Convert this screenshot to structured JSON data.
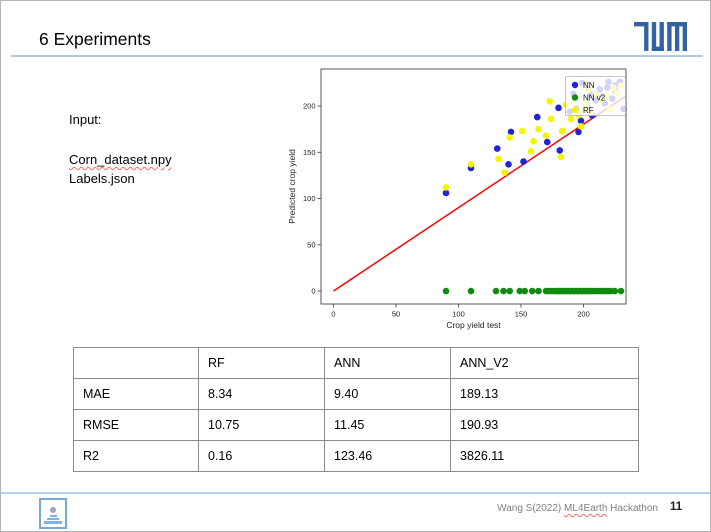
{
  "header": {
    "title": "6 Experiments"
  },
  "branding": {
    "tum_logo_color": "#30639f"
  },
  "input_block": {
    "label": "Input:",
    "files": [
      {
        "name": "Corn_dataset.npy",
        "spellcheck_underline": true
      },
      {
        "name": "Labels.json",
        "spellcheck_underline": false
      }
    ]
  },
  "chart_data": {
    "type": "scatter",
    "xlabel": "Crop yield test",
    "ylabel": "Predicted crop yield",
    "xlim": [
      -10,
      234
    ],
    "ylim": [
      -14,
      240
    ],
    "xticks": [
      0,
      50,
      100,
      150,
      200
    ],
    "yticks": [
      0,
      50,
      100,
      150,
      200
    ],
    "grid": false,
    "legend_position": "upper right",
    "identity_line": {
      "color": "#ee1111",
      "x": [
        0,
        234
      ],
      "y": [
        0,
        211
      ]
    },
    "series": [
      {
        "name": "NN",
        "color": "#2323d6",
        "points": [
          [
            90,
            106
          ],
          [
            110,
            133
          ],
          [
            131,
            154
          ],
          [
            140,
            137
          ],
          [
            142,
            172
          ],
          [
            152,
            140
          ],
          [
            163,
            188
          ],
          [
            171,
            161
          ],
          [
            180,
            198
          ],
          [
            181,
            152
          ],
          [
            189,
            194
          ],
          [
            192,
            213
          ],
          [
            194,
            197
          ],
          [
            196,
            172
          ],
          [
            198,
            184
          ],
          [
            199,
            225
          ],
          [
            203,
            200
          ],
          [
            206,
            212
          ],
          [
            207,
            190
          ],
          [
            210,
            206
          ],
          [
            213,
            218
          ],
          [
            215,
            210
          ],
          [
            217,
            203
          ],
          [
            219,
            220
          ],
          [
            220,
            226
          ],
          [
            223,
            208
          ],
          [
            225,
            222
          ],
          [
            226,
            216
          ],
          [
            229,
            226
          ],
          [
            232,
            197
          ]
        ]
      },
      {
        "name": "NN v2",
        "color": "#128a12",
        "points": [
          [
            90,
            0
          ],
          [
            110,
            0
          ],
          [
            130,
            0
          ],
          [
            136,
            0
          ],
          [
            141,
            0
          ],
          [
            149,
            0
          ],
          [
            153,
            0
          ],
          [
            159,
            0
          ],
          [
            164,
            0
          ],
          [
            170,
            0
          ],
          [
            172,
            0
          ],
          [
            174,
            0
          ],
          [
            176,
            0
          ],
          [
            178,
            0
          ],
          [
            180,
            0
          ],
          [
            181,
            0
          ],
          [
            183,
            0
          ],
          [
            184,
            0
          ],
          [
            186,
            0
          ],
          [
            187,
            0
          ],
          [
            189,
            0
          ],
          [
            190,
            0
          ],
          [
            192,
            0
          ],
          [
            193,
            0
          ],
          [
            195,
            0
          ],
          [
            196,
            0
          ],
          [
            198,
            0
          ],
          [
            199,
            0
          ],
          [
            201,
            0
          ],
          [
            202,
            0
          ],
          [
            204,
            0
          ],
          [
            206,
            0
          ],
          [
            208,
            0
          ],
          [
            210,
            0
          ],
          [
            212,
            0
          ],
          [
            214,
            0
          ],
          [
            216,
            0
          ],
          [
            218,
            0
          ],
          [
            220,
            0
          ],
          [
            222,
            0
          ],
          [
            225,
            0
          ],
          [
            230,
            0
          ]
        ]
      },
      {
        "name": "RF",
        "color": "#f5f500",
        "points": [
          [
            90,
            112
          ],
          [
            110,
            137
          ],
          [
            132,
            143
          ],
          [
            137,
            128
          ],
          [
            141,
            166
          ],
          [
            151,
            173
          ],
          [
            158,
            151
          ],
          [
            160,
            162
          ],
          [
            164,
            175
          ],
          [
            170,
            168
          ],
          [
            173,
            205
          ],
          [
            174,
            186
          ],
          [
            182,
            145
          ],
          [
            183,
            173
          ],
          [
            186,
            201
          ],
          [
            190,
            186
          ],
          [
            193,
            207
          ],
          [
            196,
            190
          ],
          [
            198,
            178
          ],
          [
            200,
            196
          ],
          [
            202,
            201
          ],
          [
            204,
            218
          ],
          [
            206,
            193
          ],
          [
            210,
            213
          ],
          [
            214,
            206
          ],
          [
            218,
            211
          ],
          [
            221,
            196
          ],
          [
            224,
            220
          ],
          [
            227,
            214
          ],
          [
            230,
            222
          ]
        ]
      }
    ]
  },
  "table": {
    "headers": [
      "",
      "RF",
      "ANN",
      "ANN_V2"
    ],
    "rows": [
      [
        "MAE",
        "8.34",
        "9.40",
        "189.13"
      ],
      [
        "RMSE",
        "10.75",
        "11.45",
        "190.93"
      ],
      [
        "R2",
        "0.16",
        "123.46",
        "3826.11"
      ]
    ]
  },
  "footer": {
    "credit_prefix": "Wang S(2022) ",
    "credit_misspelled_word": "ML4Earth",
    "credit_suffix": " Hackathon",
    "page_number": "11"
  }
}
